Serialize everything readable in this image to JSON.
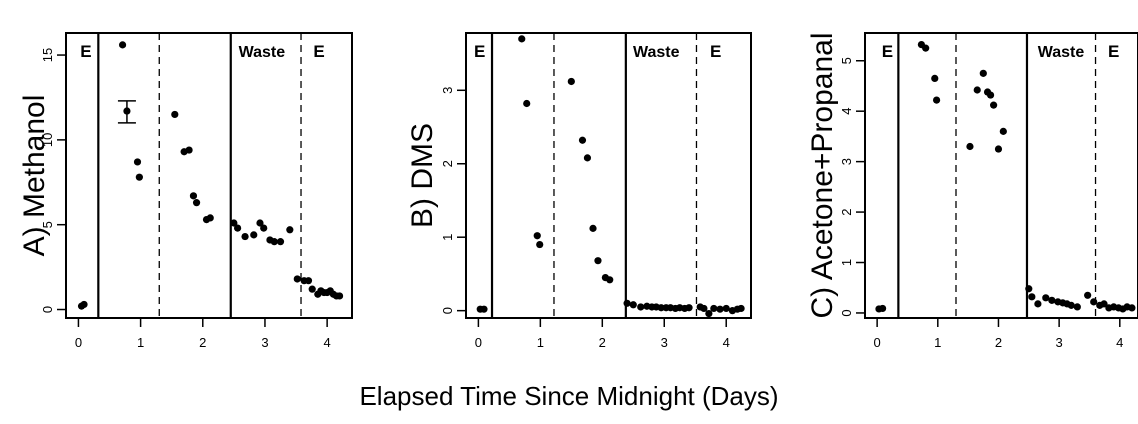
{
  "figure": {
    "xlabel": "Elapsed Time Since Midnight (Days)"
  },
  "chart_data": [
    {
      "type": "scatter",
      "ylabel": "A) Methanol",
      "xlim": [
        -0.2,
        4.4
      ],
      "ylim": [
        -0.5,
        16.3
      ],
      "x_ticks": [
        0,
        1,
        2,
        3,
        4
      ],
      "x_tick_labels": [
        "0",
        "1",
        "2",
        "3",
        "4"
      ],
      "y_ticks": [
        0,
        5,
        10,
        15
      ],
      "y_tick_labels": [
        "0",
        "5",
        "10",
        "15"
      ],
      "solid_lines": [
        0.32,
        2.45
      ],
      "dashed_lines": [
        1.3,
        3.58
      ],
      "region_labels": [
        {
          "text": "E",
          "x": 0.12
        },
        {
          "text": "Waste",
          "x": 2.95
        },
        {
          "text": "E",
          "x": 3.87
        }
      ],
      "error_bar": {
        "x": 0.78,
        "y": 11.7,
        "low": 11.0,
        "high": 12.3
      },
      "series": [
        {
          "x": [
            0.05,
            0.09,
            0.71,
            0.95,
            0.98,
            1.55,
            1.7,
            1.78,
            1.85,
            1.9,
            2.06,
            2.12,
            2.5,
            2.56,
            2.68,
            2.82,
            2.92,
            2.98,
            3.08,
            3.15,
            3.25,
            3.4,
            3.52,
            3.63,
            3.7,
            3.76,
            3.85,
            3.9,
            3.95,
            4.0,
            4.05,
            4.1,
            4.15,
            4.2
          ],
          "y": [
            0.2,
            0.3,
            15.6,
            8.7,
            7.8,
            11.5,
            9.3,
            9.4,
            6.7,
            6.3,
            5.3,
            5.4,
            5.1,
            4.8,
            4.3,
            4.4,
            5.1,
            4.8,
            4.1,
            4.0,
            4.0,
            4.7,
            1.8,
            1.7,
            1.7,
            1.2,
            0.9,
            1.1,
            1.0,
            1.0,
            1.1,
            0.9,
            0.8,
            0.8
          ]
        }
      ]
    },
    {
      "type": "scatter",
      "ylabel": "B) DMS",
      "xlim": [
        -0.2,
        4.4
      ],
      "ylim": [
        -0.1,
        3.78
      ],
      "x_ticks": [
        0,
        1,
        2,
        3,
        4
      ],
      "x_tick_labels": [
        "0",
        "1",
        "2",
        "3",
        "4"
      ],
      "y_ticks": [
        0,
        1,
        2,
        3
      ],
      "y_tick_labels": [
        "0",
        "1",
        "2",
        "3"
      ],
      "solid_lines": [
        0.22,
        2.38
      ],
      "dashed_lines": [
        1.22,
        3.52
      ],
      "region_labels": [
        {
          "text": "E",
          "x": 0.02
        },
        {
          "text": "Waste",
          "x": 2.87
        },
        {
          "text": "E",
          "x": 3.83
        }
      ],
      "series": [
        {
          "x": [
            0.03,
            0.09,
            0.7,
            0.78,
            0.95,
            0.99,
            1.5,
            1.68,
            1.76,
            1.85,
            1.93,
            2.05,
            2.12,
            2.4,
            2.5,
            2.62,
            2.72,
            2.8,
            2.87,
            2.95,
            3.03,
            3.1,
            3.18,
            3.25,
            3.33,
            3.4,
            3.58,
            3.64,
            3.72,
            3.8,
            3.9,
            4.0,
            4.1,
            4.18,
            4.24
          ],
          "y": [
            0.02,
            0.02,
            3.7,
            2.82,
            1.02,
            0.9,
            3.12,
            2.32,
            2.08,
            1.12,
            0.68,
            0.45,
            0.42,
            0.1,
            0.08,
            0.05,
            0.06,
            0.05,
            0.05,
            0.04,
            0.04,
            0.04,
            0.03,
            0.04,
            0.03,
            0.04,
            0.05,
            0.03,
            -0.04,
            0.03,
            0.02,
            0.03,
            0.0,
            0.02,
            0.03
          ]
        }
      ]
    },
    {
      "type": "scatter",
      "ylabel": "C) Acetone+Propanal",
      "xlim": [
        -0.2,
        4.3
      ],
      "ylim": [
        -0.1,
        5.55
      ],
      "x_ticks": [
        0,
        1,
        2,
        3,
        4
      ],
      "x_tick_labels": [
        "0",
        "1",
        "2",
        "3",
        "4"
      ],
      "y_ticks": [
        0,
        1,
        2,
        3,
        4,
        5
      ],
      "y_tick_labels": [
        "0",
        "1",
        "2",
        "3",
        "4",
        "5"
      ],
      "solid_lines": [
        0.35,
        2.47
      ],
      "dashed_lines": [
        1.3,
        3.6
      ],
      "region_labels": [
        {
          "text": "E",
          "x": 0.17
        },
        {
          "text": "Waste",
          "x": 3.03
        },
        {
          "text": "E",
          "x": 3.9
        }
      ],
      "series": [
        {
          "x": [
            0.03,
            0.09,
            0.73,
            0.8,
            0.95,
            0.98,
            1.53,
            1.65,
            1.75,
            1.82,
            1.87,
            1.92,
            2.0,
            2.08,
            2.5,
            2.55,
            2.65,
            2.78,
            2.88,
            2.98,
            3.06,
            3.13,
            3.2,
            3.3,
            3.47,
            3.57,
            3.67,
            3.74,
            3.82,
            3.9,
            3.98,
            4.05,
            4.12,
            4.2
          ],
          "y": [
            0.08,
            0.09,
            5.32,
            5.25,
            4.65,
            4.22,
            3.3,
            4.42,
            4.75,
            4.38,
            4.32,
            4.12,
            3.25,
            3.6,
            0.48,
            0.32,
            0.18,
            0.3,
            0.25,
            0.22,
            0.2,
            0.18,
            0.15,
            0.12,
            0.35,
            0.22,
            0.15,
            0.18,
            0.1,
            0.12,
            0.1,
            0.08,
            0.12,
            0.1
          ]
        }
      ]
    }
  ]
}
